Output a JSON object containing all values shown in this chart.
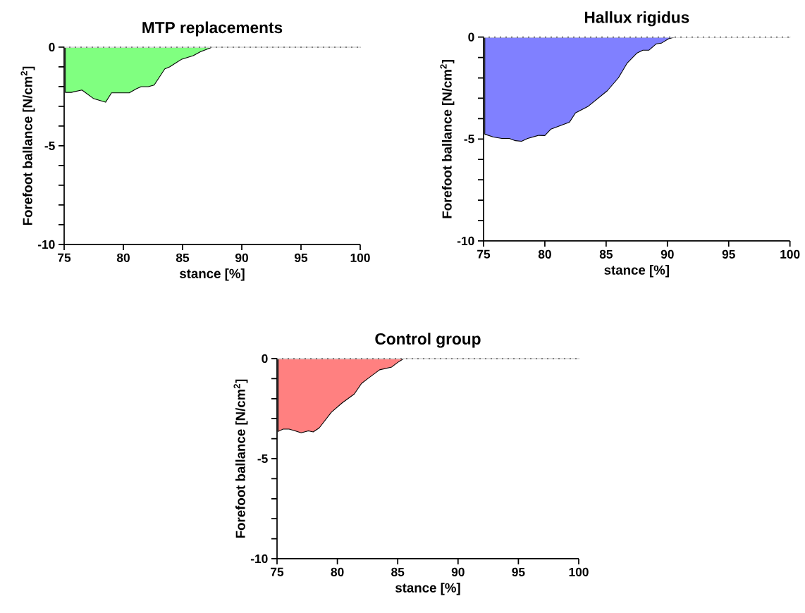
{
  "chart_data": [
    {
      "type": "area",
      "title": "MTP replacements",
      "xlabel": "stance [%]",
      "ylabel": "Forefoot ballance [N/cm$^{2}$]",
      "series": [
        {
          "color": "#80ff80",
          "x": [
            75.1,
            75.6,
            76.5,
            77.5,
            78.5,
            79.0,
            80.5,
            81.1,
            81.5,
            82.1,
            82.6,
            83.5,
            83.9,
            84.9,
            85.9,
            86.5,
            87.5,
            100
          ],
          "values": [
            -2.29,
            -2.29,
            -2.17,
            -2.61,
            -2.79,
            -2.31,
            -2.31,
            -2.11,
            -2.0,
            -2.0,
            -1.92,
            -1.1,
            -1.0,
            -0.62,
            -0.43,
            -0.23,
            0,
            0
          ]
        }
      ],
      "xlim": [
        75,
        100
      ],
      "xticks": [
        75,
        80,
        85,
        90,
        95,
        100
      ],
      "ylim": [
        -10,
        0
      ],
      "yticks": [
        -10,
        -5,
        0
      ],
      "ref_lines": [
        {
          "axis": "y",
          "value": 0,
          "line_style": "dotted",
          "color": "#000000"
        }
      ]
    },
    {
      "type": "area",
      "title": "Hallux rigidus",
      "xlabel": "stance [%]",
      "ylabel": "Forefoot ballance [N/cm$^{2}$]",
      "series": [
        {
          "color": "#8080ff",
          "x": [
            75.1,
            75.8,
            76.5,
            77.1,
            77.6,
            78.1,
            78.6,
            79.5,
            80.0,
            80.5,
            82.0,
            82.5,
            83.5,
            85.1,
            86.0,
            86.7,
            87.5,
            88.0,
            88.5,
            89.1,
            89.5,
            90.1,
            90.6,
            100
          ],
          "values": [
            -4.76,
            -4.9,
            -4.97,
            -4.97,
            -5.08,
            -5.11,
            -4.97,
            -4.82,
            -4.83,
            -4.51,
            -4.18,
            -3.72,
            -3.41,
            -2.63,
            -2.0,
            -1.29,
            -0.79,
            -0.64,
            -0.64,
            -0.33,
            -0.3,
            -0.08,
            0,
            0
          ]
        }
      ],
      "xlim": [
        75,
        100
      ],
      "xticks": [
        75,
        80,
        85,
        90,
        95,
        100
      ],
      "ylim": [
        -10,
        0
      ],
      "yticks": [
        -10,
        -5,
        0
      ],
      "ref_lines": [
        {
          "axis": "y",
          "value": 0,
          "line_style": "dotted",
          "color": "#000000"
        }
      ]
    },
    {
      "type": "area",
      "title": "Control group",
      "xlabel": "stance [%]",
      "ylabel": "Forefoot ballance [N/cm$^{2}$]",
      "series": [
        {
          "color": "#ff8080",
          "x": [
            75.1,
            75.5,
            76.0,
            76.5,
            77.0,
            77.6,
            78.0,
            78.5,
            79.5,
            80.4,
            81.4,
            82.0,
            82.5,
            83.5,
            84.5,
            85.0,
            85.5,
            100
          ],
          "values": [
            -3.64,
            -3.52,
            -3.52,
            -3.61,
            -3.71,
            -3.61,
            -3.66,
            -3.46,
            -2.68,
            -2.21,
            -1.77,
            -1.24,
            -1.01,
            -0.56,
            -0.42,
            -0.19,
            0,
            0
          ]
        }
      ],
      "xlim": [
        75,
        100
      ],
      "xticks": [
        75,
        80,
        85,
        90,
        95,
        100
      ],
      "ylim": [
        -10,
        0
      ],
      "yticks": [
        -10,
        -5,
        0
      ],
      "ref_lines": [
        {
          "axis": "y",
          "value": 0,
          "line_style": "dotted",
          "color": "#000000"
        }
      ]
    }
  ]
}
